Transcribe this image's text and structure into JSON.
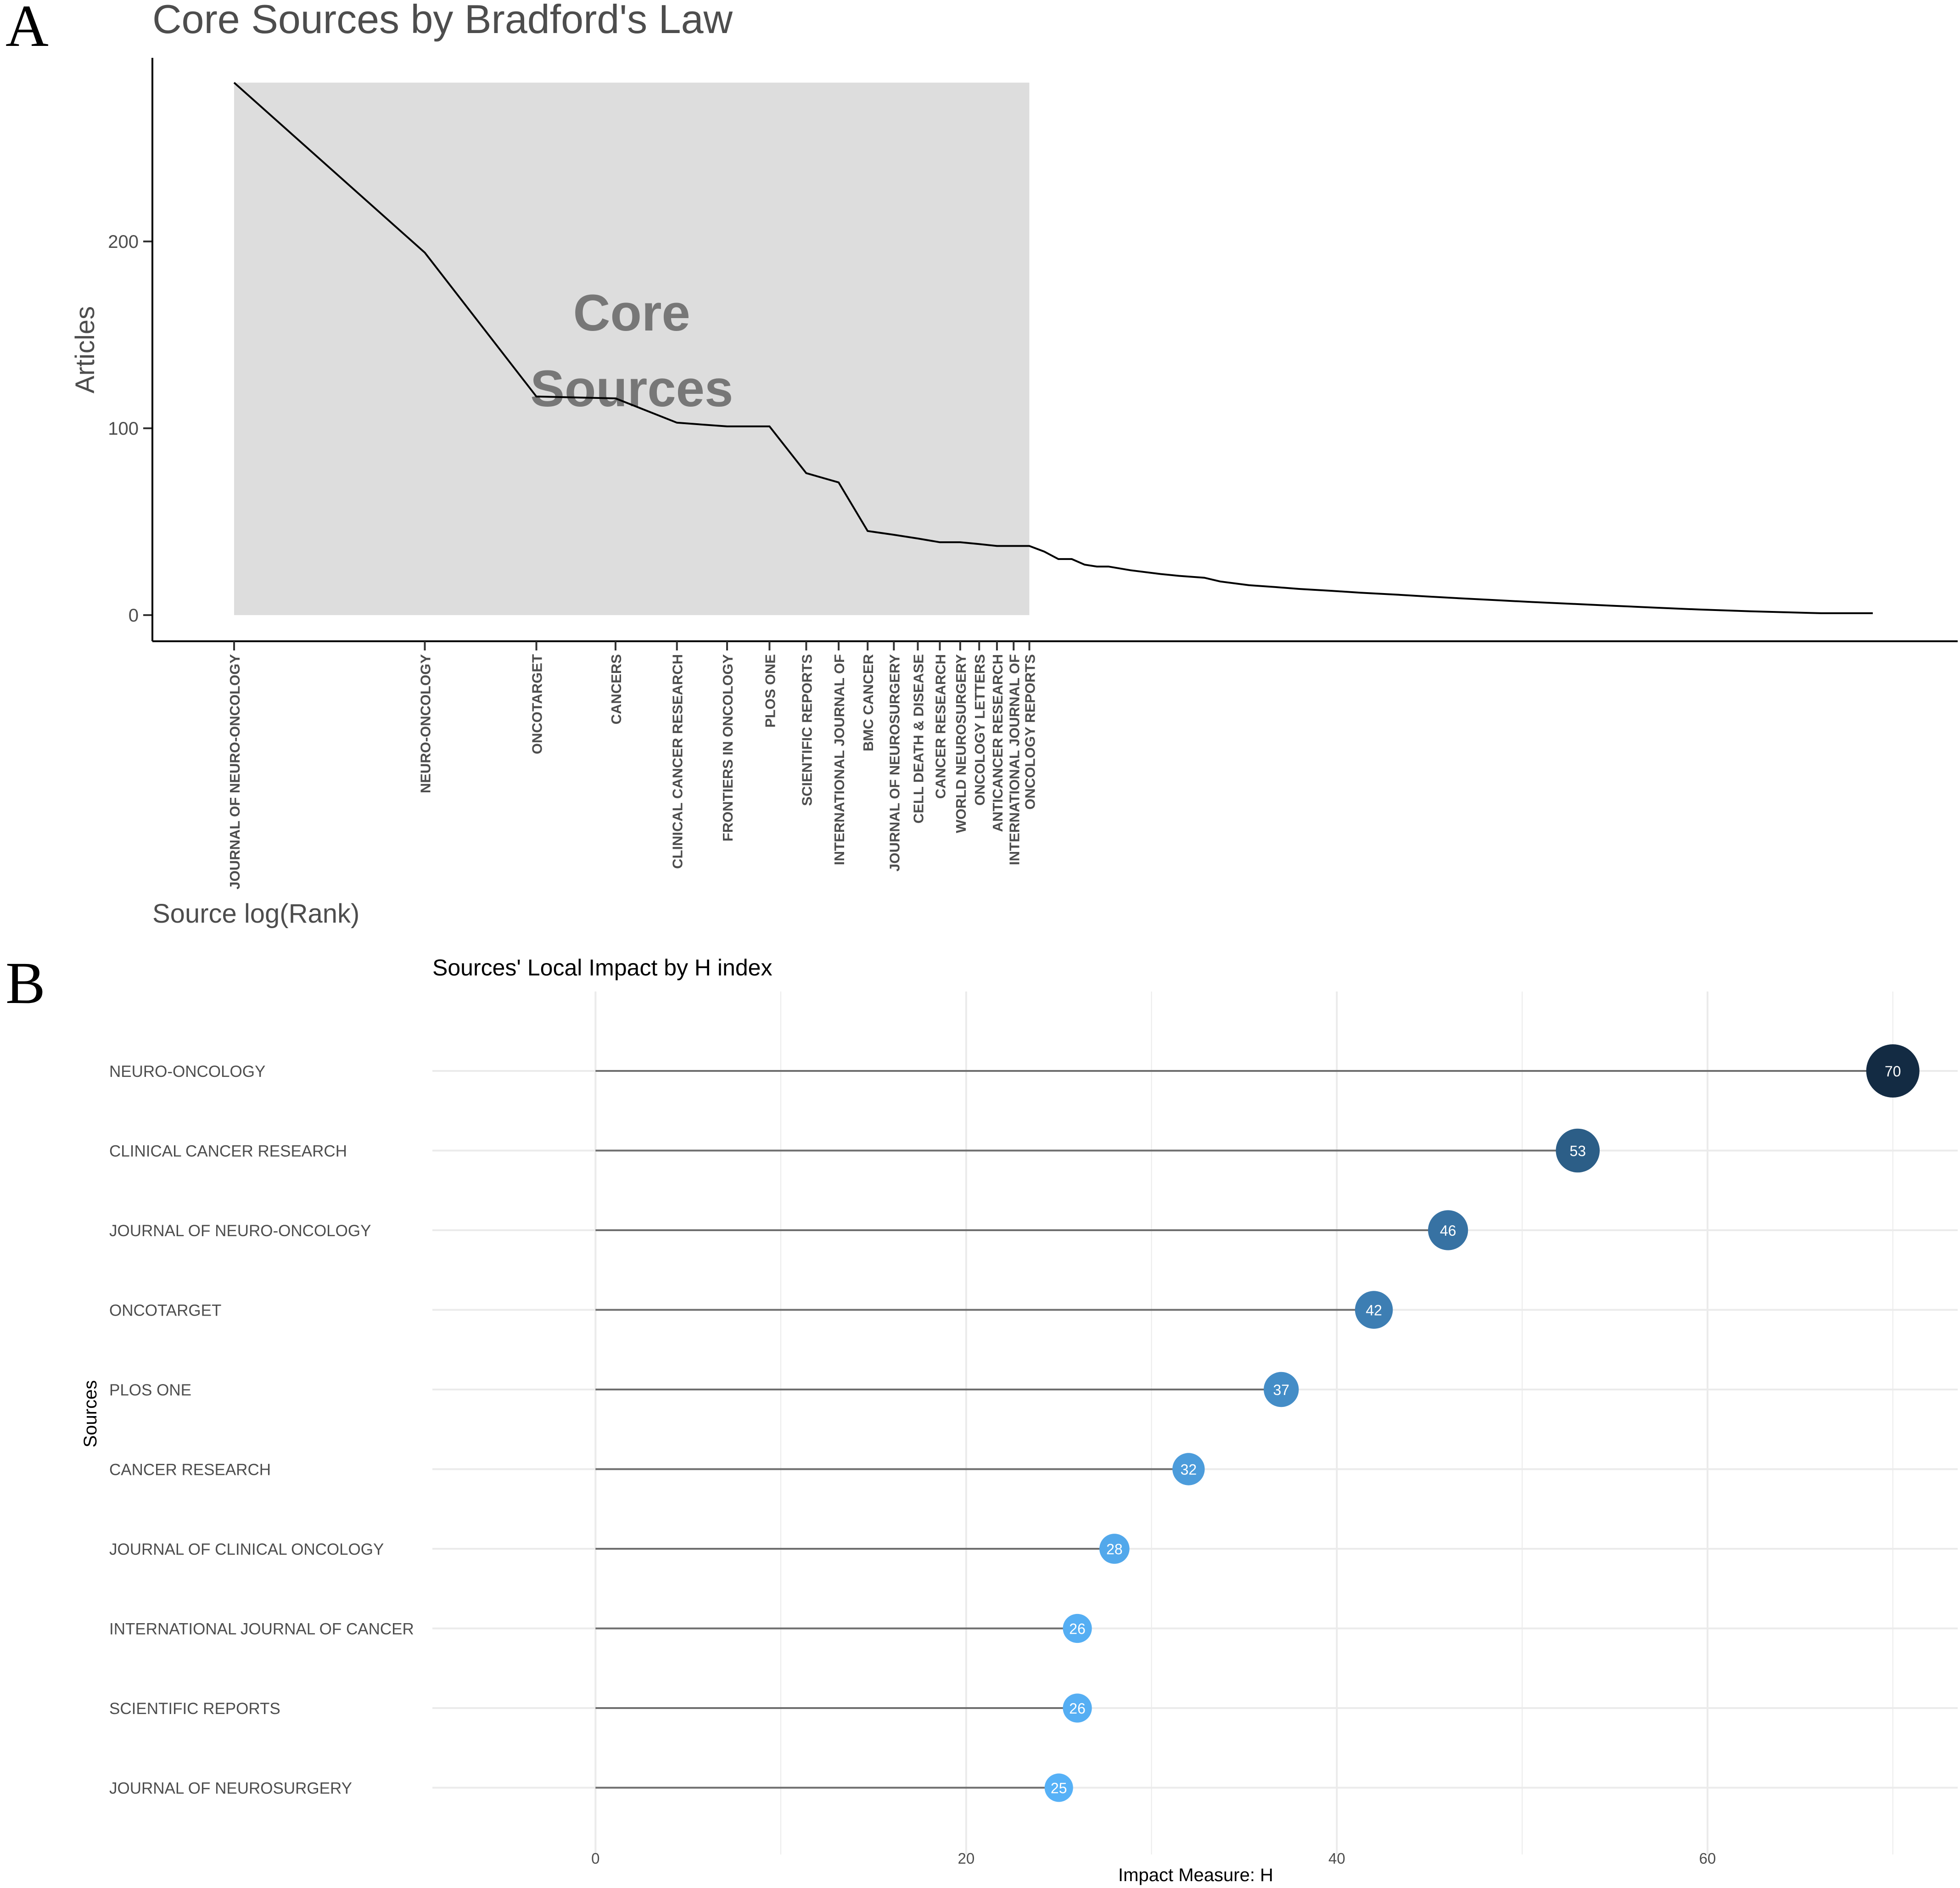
{
  "panel_a": {
    "letter": "A",
    "title": "Core Sources by Bradford's Law",
    "xlabel": "Source log(Rank)",
    "ylabel": "Articles",
    "zone_label_line1": "Core",
    "zone_label_line2": "Sources"
  },
  "panel_b": {
    "letter": "B",
    "title": "Sources' Local Impact by H index",
    "xlabel": "Impact Measure: H",
    "ylabel": "Sources"
  },
  "colors": {
    "core_zone": "#dddddd",
    "line": "#000000",
    "grid": "#ebebeb",
    "segment": "#6e6e6e",
    "point_low": "#56b1f7",
    "point_high": "#132b43"
  },
  "chart_data": [
    {
      "type": "line",
      "title": "Core Sources by Bradford's Law",
      "xlabel": "Source log(Rank)",
      "ylabel": "Articles",
      "x_scale": "log",
      "ylim": [
        0,
        285
      ],
      "y_ticks": [
        0,
        100,
        200
      ],
      "grid": false,
      "legend": "none",
      "core_zone": {
        "rank_from": 1,
        "rank_to": 18,
        "label": "Core Sources"
      },
      "core_sources": [
        {
          "rank": 1,
          "name": "JOURNAL OF NEURO-ONCOLOGY",
          "articles": 285
        },
        {
          "rank": 2,
          "name": "NEURO-ONCOLOGY",
          "articles": 194
        },
        {
          "rank": 3,
          "name": "ONCOTARGET",
          "articles": 117
        },
        {
          "rank": 4,
          "name": "CANCERS",
          "articles": 116
        },
        {
          "rank": 5,
          "name": "CLINICAL CANCER RESEARCH",
          "articles": 103
        },
        {
          "rank": 6,
          "name": "FRONTIERS IN ONCOLOGY",
          "articles": 101
        },
        {
          "rank": 7,
          "name": "PLOS ONE",
          "articles": 101
        },
        {
          "rank": 8,
          "name": "SCIENTIFIC REPORTS",
          "articles": 76
        },
        {
          "rank": 9,
          "name": "INTERNATIONAL JOURNAL OF",
          "articles": 71
        },
        {
          "rank": 10,
          "name": "BMC CANCER",
          "articles": 45
        },
        {
          "rank": 11,
          "name": "JOURNAL OF NEUROSURGERY",
          "articles": 43
        },
        {
          "rank": 12,
          "name": "CELL DEATH & DISEASE",
          "articles": 41
        },
        {
          "rank": 13,
          "name": "CANCER RESEARCH",
          "articles": 39
        },
        {
          "rank": 14,
          "name": "WORLD NEUROSURGERY",
          "articles": 39
        },
        {
          "rank": 15,
          "name": "ONCOLOGY LETTERS",
          "articles": 38
        },
        {
          "rank": 16,
          "name": "ANTICANCER RESEARCH",
          "articles": 37
        },
        {
          "rank": 17,
          "name": "INTERNATIONAL JOURNAL OF",
          "articles": 37
        },
        {
          "rank": 18,
          "name": "ONCOLOGY REPORTS",
          "articles": 37
        }
      ],
      "tail": [
        [
          19,
          34
        ],
        [
          20,
          30
        ],
        [
          21,
          30
        ],
        [
          22,
          27
        ],
        [
          23,
          26
        ],
        [
          24,
          26
        ],
        [
          26,
          24
        ],
        [
          29,
          22
        ],
        [
          31,
          21
        ],
        [
          34,
          20
        ],
        [
          36,
          18
        ],
        [
          40,
          16
        ],
        [
          44,
          15
        ],
        [
          48,
          14
        ],
        [
          54,
          13
        ],
        [
          60,
          12
        ],
        [
          68,
          11
        ],
        [
          76,
          10
        ],
        [
          86,
          9
        ],
        [
          98,
          8
        ],
        [
          112,
          7
        ],
        [
          130,
          6
        ],
        [
          150,
          5
        ],
        [
          175,
          4
        ],
        [
          205,
          3
        ],
        [
          250,
          2
        ],
        [
          320,
          1
        ],
        [
          386,
          1
        ]
      ]
    },
    {
      "type": "scatter",
      "subtype": "lollipop",
      "title": "Sources' Local Impact by H index",
      "xlabel": "Impact Measure: H",
      "ylabel": "Sources",
      "xlim": [
        -8.8,
        73.5
      ],
      "x_ticks": [
        0,
        20,
        40,
        60
      ],
      "grid": true,
      "legend": "none",
      "categories": [
        "NEURO-ONCOLOGY",
        "CLINICAL CANCER RESEARCH",
        "JOURNAL OF NEURO-ONCOLOGY",
        "ONCOTARGET",
        "PLOS ONE",
        "CANCER RESEARCH",
        "JOURNAL OF CLINICAL ONCOLOGY",
        "INTERNATIONAL JOURNAL OF CANCER",
        "SCIENTIFIC REPORTS",
        "JOURNAL OF NEUROSURGERY"
      ],
      "values": [
        70,
        53,
        46,
        42,
        37,
        32,
        28,
        26,
        26,
        25
      ]
    }
  ]
}
